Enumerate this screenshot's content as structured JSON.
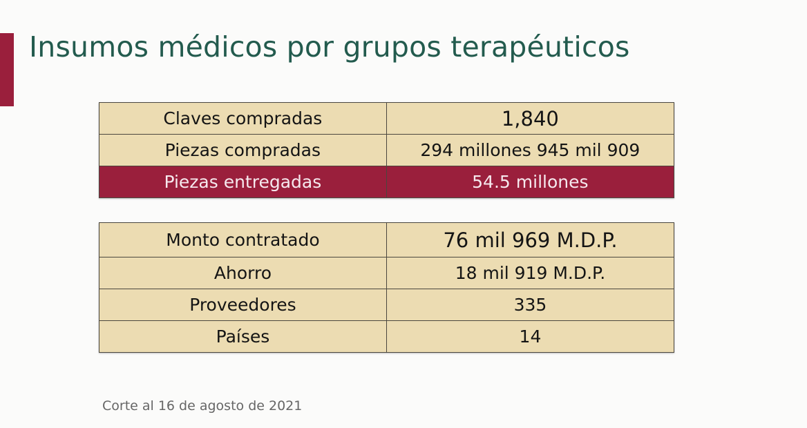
{
  "slide": {
    "title": "Insumos médicos por grupos terapéuticos",
    "accent_color": "#9a1f3c",
    "title_color": "#235b4e",
    "footnote": "Corte al 16 de agosto de 2021"
  },
  "table_1": {
    "rows": [
      {
        "label": "Claves compradas",
        "value": "1,840"
      },
      {
        "label": "Piezas compradas",
        "value": "294 millones 945 mil 909"
      },
      {
        "label": "Piezas entregadas",
        "value": "54.5 millones"
      }
    ]
  },
  "table_2": {
    "rows": [
      {
        "label": "Monto contratado",
        "value": "76 mil 969 M.D.P."
      },
      {
        "label": "Ahorro",
        "value": "18 mil 919 M.D.P."
      },
      {
        "label": "Proveedores",
        "value": "335"
      },
      {
        "label": "Países",
        "value": "14"
      }
    ]
  },
  "colors": {
    "cell_background": "#ecdcb2",
    "highlight_row": "#9a1f3c"
  }
}
